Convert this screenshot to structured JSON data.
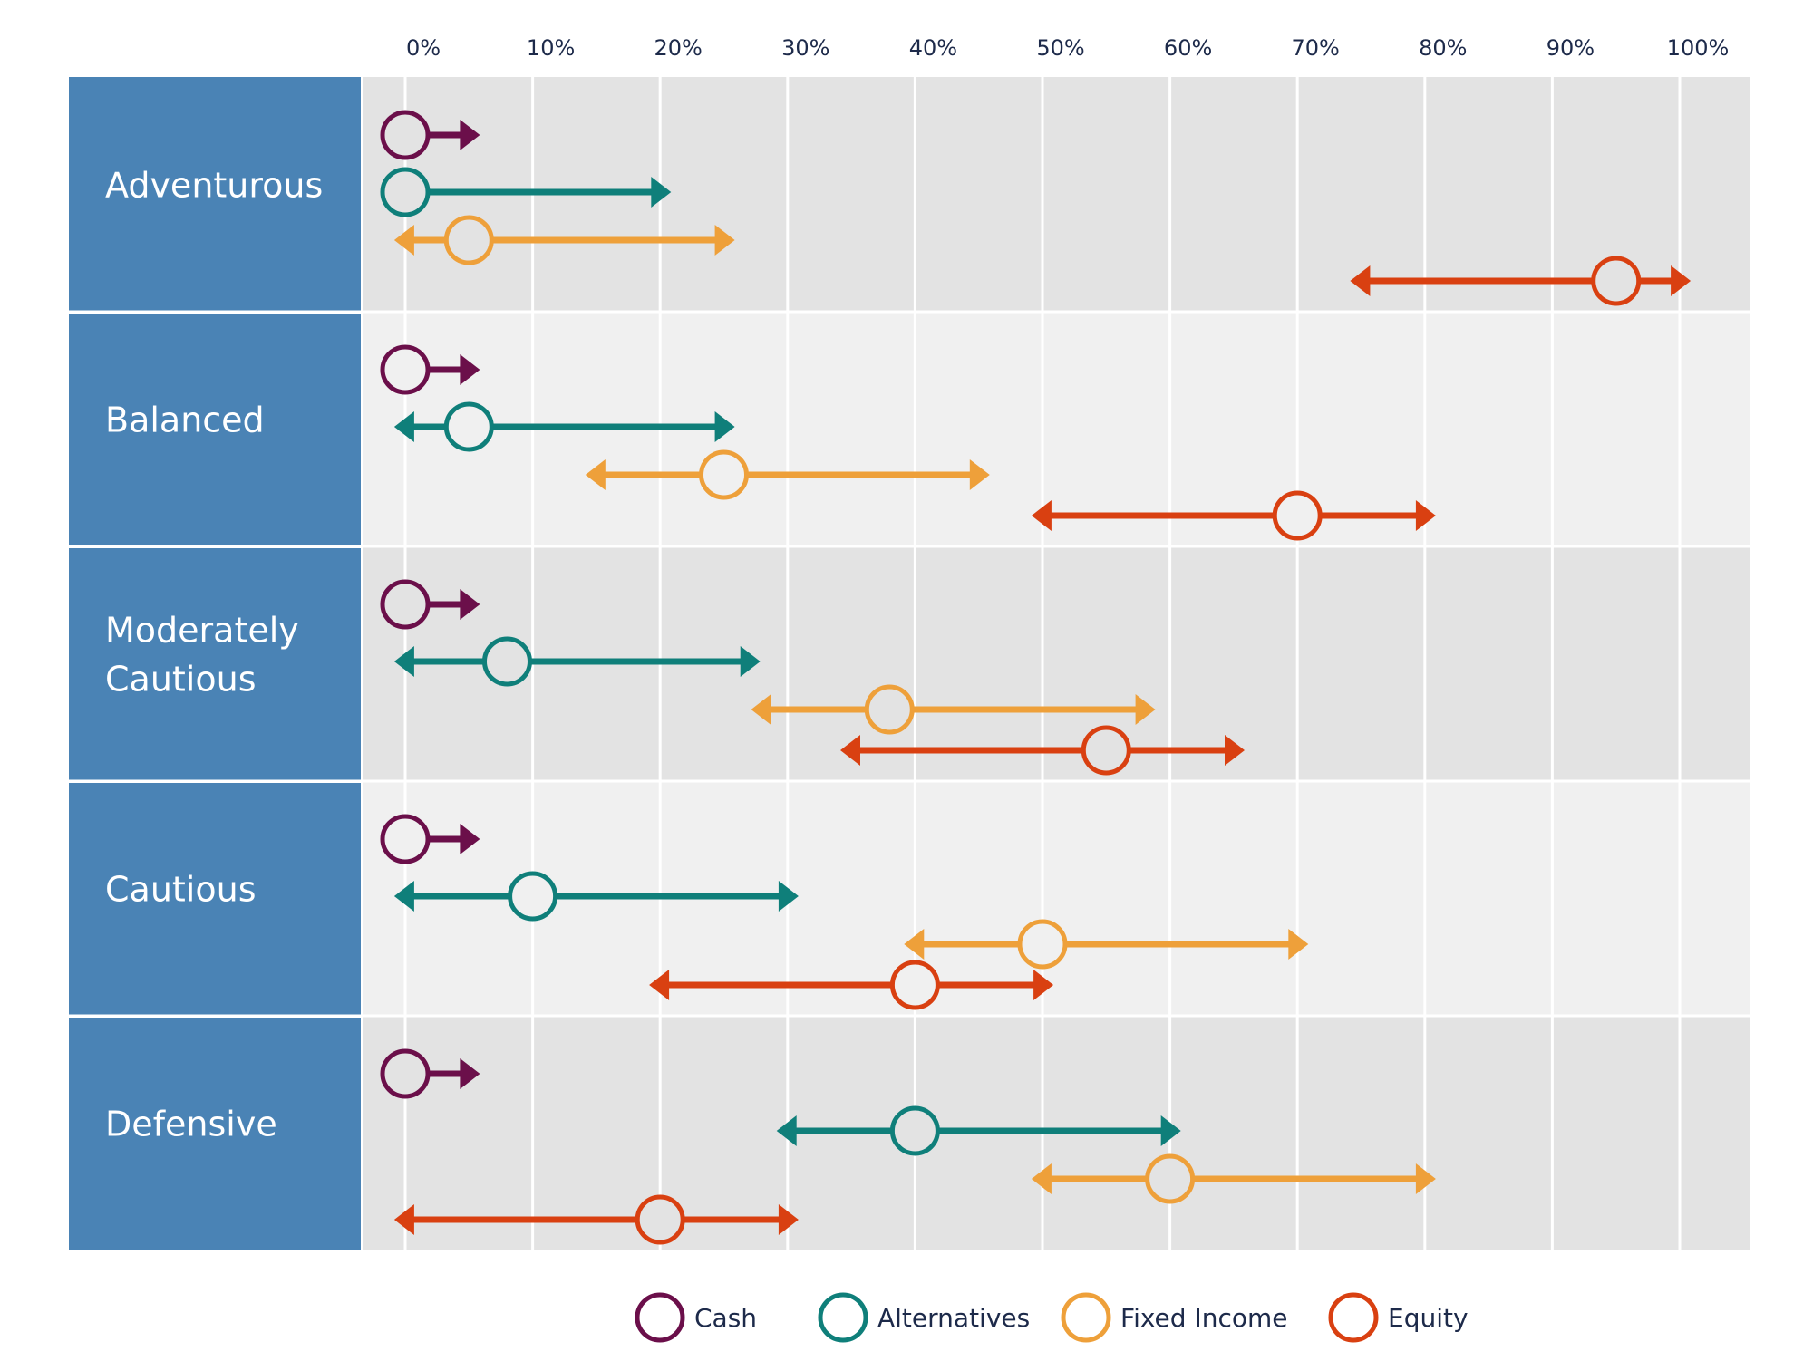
{
  "chart_data": {
    "type": "range-dot",
    "x_ticks": [
      "0%",
      "10%",
      "20%",
      "30%",
      "40%",
      "50%",
      "60%",
      "70%",
      "80%",
      "90%",
      "100%"
    ],
    "xlim": [
      0,
      100
    ],
    "grid": true,
    "legend_position": "bottom-center",
    "assets": [
      {
        "name": "Cash",
        "color": "#6b0f4a"
      },
      {
        "name": "Alternatives",
        "color": "#0f7f7a"
      },
      {
        "name": "Fixed Income",
        "color": "#eea03a"
      },
      {
        "name": "Equity",
        "color": "#d94011"
      }
    ],
    "profiles": [
      {
        "name": "Adventurous",
        "label_lines": [
          "Adventurous"
        ],
        "ranges": [
          {
            "asset": "Cash",
            "min": 0,
            "max": 5,
            "neutral": 0
          },
          {
            "asset": "Alternatives",
            "min": 0,
            "max": 20,
            "neutral": 0
          },
          {
            "asset": "Fixed Income",
            "min": 0,
            "max": 25,
            "neutral": 5
          },
          {
            "asset": "Equity",
            "min": 75,
            "max": 100,
            "neutral": 95
          }
        ]
      },
      {
        "name": "Balanced",
        "label_lines": [
          "Balanced"
        ],
        "ranges": [
          {
            "asset": "Cash",
            "min": 0,
            "max": 5,
            "neutral": 0
          },
          {
            "asset": "Alternatives",
            "min": 0,
            "max": 25,
            "neutral": 5
          },
          {
            "asset": "Fixed Income",
            "min": 15,
            "max": 45,
            "neutral": 25
          },
          {
            "asset": "Equity",
            "min": 50,
            "max": 80,
            "neutral": 70
          }
        ]
      },
      {
        "name": "Moderately Cautious",
        "label_lines": [
          "Moderately",
          "Cautious"
        ],
        "ranges": [
          {
            "asset": "Cash",
            "min": 0,
            "max": 5,
            "neutral": 0
          },
          {
            "asset": "Alternatives",
            "min": 0,
            "max": 27,
            "neutral": 8
          },
          {
            "asset": "Fixed Income",
            "min": 28,
            "max": 58,
            "neutral": 38
          },
          {
            "asset": "Equity",
            "min": 35,
            "max": 65,
            "neutral": 55
          }
        ]
      },
      {
        "name": "Cautious",
        "label_lines": [
          "Cautious"
        ],
        "ranges": [
          {
            "asset": "Cash",
            "min": 0,
            "max": 5,
            "neutral": 0
          },
          {
            "asset": "Alternatives",
            "min": 0,
            "max": 30,
            "neutral": 10
          },
          {
            "asset": "Fixed Income",
            "min": 40,
            "max": 70,
            "neutral": 50
          },
          {
            "asset": "Equity",
            "min": 20,
            "max": 50,
            "neutral": 40
          }
        ]
      },
      {
        "name": "Defensive",
        "label_lines": [
          "Defensive"
        ],
        "ranges": [
          {
            "asset": "Cash",
            "min": 0,
            "max": 5,
            "neutral": 0
          },
          {
            "asset": "Alternatives",
            "min": 30,
            "max": 60,
            "neutral": 40
          },
          {
            "asset": "Fixed Income",
            "min": 50,
            "max": 80,
            "neutral": 60
          },
          {
            "asset": "Equity",
            "min": 0,
            "max": 30,
            "neutral": 20
          }
        ]
      }
    ]
  }
}
